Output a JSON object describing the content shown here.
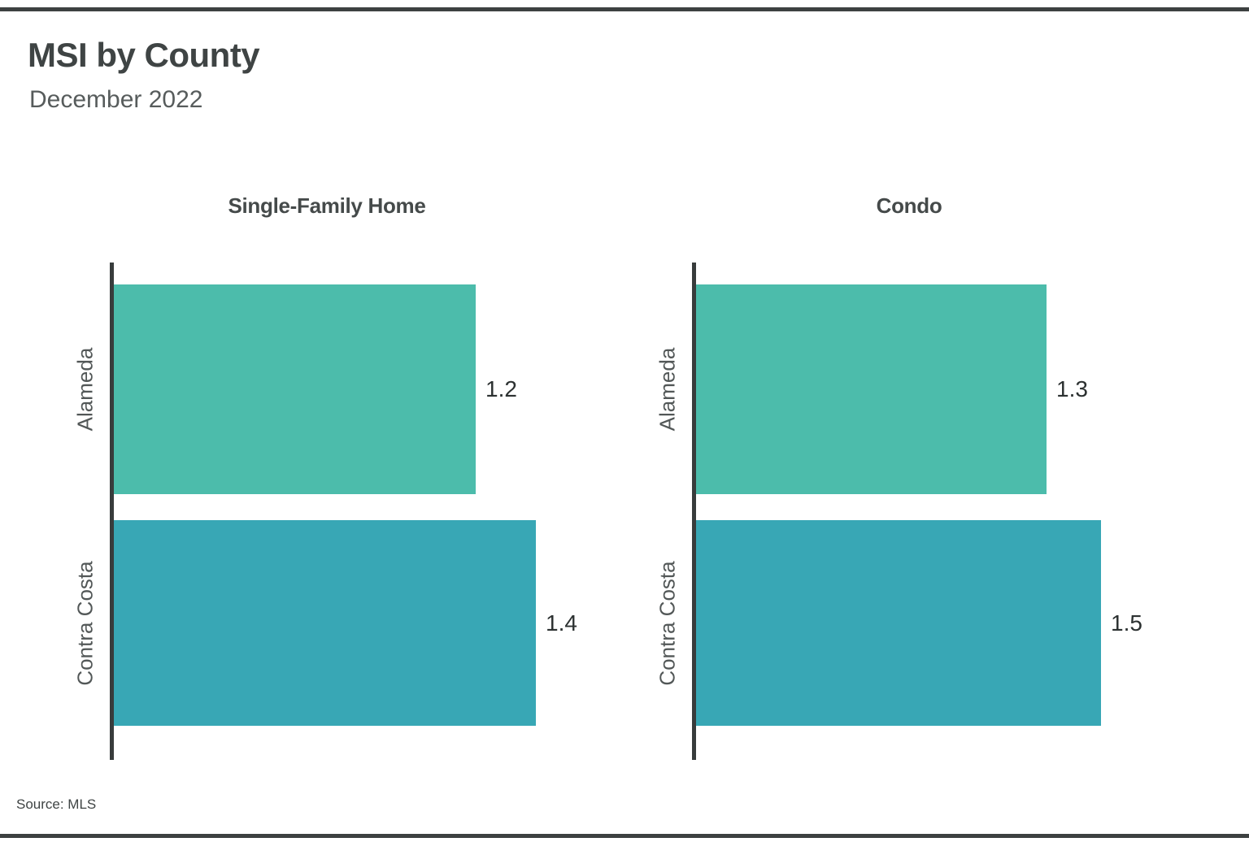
{
  "chart_data": {
    "type": "bar",
    "orientation": "horizontal",
    "title": "MSI by County",
    "subtitle": "December 2022",
    "source_note": "Source: MLS",
    "categories": [
      "Alameda",
      "Contra Costa"
    ],
    "facets": [
      {
        "title": "Single-Family Home",
        "values": [
          1.2,
          1.4
        ],
        "xlim": [
          0,
          1.44
        ]
      },
      {
        "title": "Condo",
        "values": [
          1.3,
          1.5
        ],
        "xlim": [
          0,
          1.61
        ]
      }
    ],
    "bar_colors": [
      "#4cbcab",
      "#38a7b5"
    ],
    "value_label_decimals": 1,
    "grid": false,
    "legend": "none",
    "x_tick_labels": "none",
    "axis_color": "#383c3c",
    "rule_color": "#3d4141",
    "value_label_color": "#2c3131",
    "category_label_color": "#525757"
  }
}
